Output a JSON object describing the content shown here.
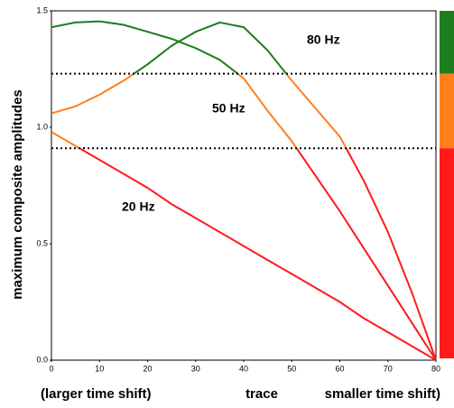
{
  "chart_data": {
    "type": "line",
    "ylabel": "maximum composite amplitudes",
    "xlabel_parts": [
      "(larger time shift)",
      "trace",
      "smaller time shift)"
    ],
    "x": [
      0,
      5,
      10,
      15,
      20,
      25,
      30,
      35,
      40,
      45,
      50,
      55,
      60,
      65,
      70,
      75,
      80
    ],
    "series": [
      {
        "name": "80 Hz",
        "values": [
          1.06,
          1.09,
          1.14,
          1.2,
          1.27,
          1.35,
          1.41,
          1.45,
          1.43,
          1.33,
          1.2,
          1.08,
          0.96,
          0.77,
          0.55,
          0.29,
          0
        ]
      },
      {
        "name": "50 Hz",
        "values": [
          1.43,
          1.45,
          1.455,
          1.44,
          1.41,
          1.38,
          1.34,
          1.29,
          1.21,
          1.07,
          0.94,
          0.79,
          0.64,
          0.48,
          0.32,
          0.16,
          0
        ]
      },
      {
        "name": "20 Hz",
        "values": [
          0.98,
          0.92,
          0.86,
          0.8,
          0.74,
          0.67,
          0.61,
          0.55,
          0.49,
          0.43,
          0.37,
          0.31,
          0.25,
          0.18,
          0.12,
          0.06,
          0
        ]
      }
    ],
    "thresholds": [
      1.23,
      0.91
    ],
    "band_colors": [
      "#1e7d1e",
      "#ff7f1f",
      "#ff1a1a"
    ],
    "xlim": [
      0,
      80
    ],
    "xticks": [
      0,
      10,
      20,
      30,
      40,
      50,
      60,
      70,
      80
    ],
    "ylim": [
      0,
      1.5
    ],
    "yticks": [
      {
        "value": 0,
        "label": "0.0"
      },
      {
        "value": 0.5,
        "label": "0.5"
      },
      {
        "value": 1,
        "label": "1.0"
      },
      {
        "value": 1.5,
        "label": "1.5"
      }
    ]
  }
}
